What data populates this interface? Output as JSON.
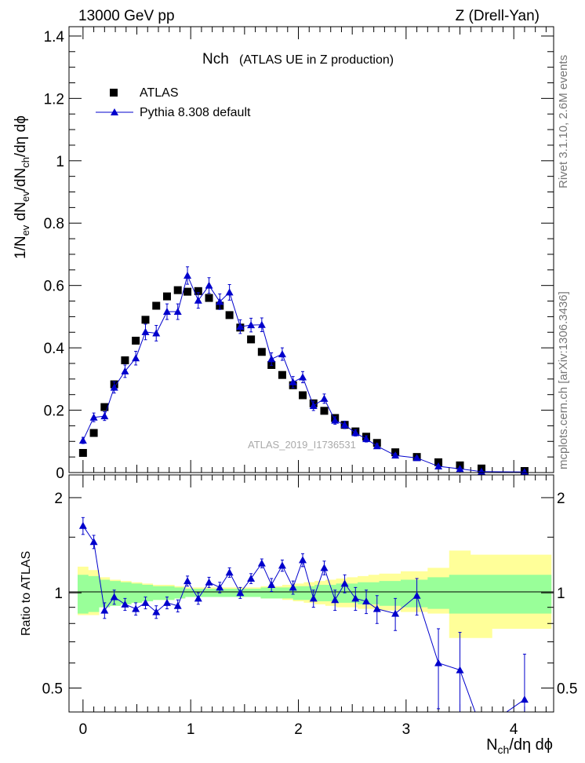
{
  "header": {
    "left": "13000 GeV pp",
    "right": "Z (Drell-Yan)"
  },
  "side_labels": {
    "rivet": "Rivet 3.1.10,  2.6M events",
    "mcplots": "mcplots.cern.ch [arXiv:1306.3436]"
  },
  "plot_title": {
    "main": "Nch",
    "sub": "(ATLAS UE in Z production)"
  },
  "watermark": "ATLAS_2019_I1736531",
  "legend": {
    "data_label": "ATLAS",
    "mc_label": "Pythia 8.308 default"
  },
  "axes": {
    "top_ylabel": "1/N_ev dN_ev/dN_ch/dη dϕ",
    "bottom_ylabel": "Ratio to ATLAS",
    "xlabel": "N_ch/dη dϕ"
  },
  "colors": {
    "data": "#000000",
    "mc": "#0000cc",
    "band_inner": "#99ff99",
    "band_outer": "#ffff99"
  },
  "chart_data": [
    {
      "type": "scatter",
      "panel": "main",
      "xlim": [
        -0.13,
        4.37
      ],
      "ylim": [
        0,
        1.43
      ],
      "yticks": [
        0,
        0.2,
        0.4,
        0.6,
        0.8,
        1,
        1.2,
        1.4
      ],
      "xticks": [
        0,
        1,
        2,
        3,
        4
      ],
      "series": [
        {
          "name": "ATLAS",
          "marker": "square",
          "x": [
            0.0,
            0.1,
            0.2,
            0.29,
            0.39,
            0.49,
            0.58,
            0.68,
            0.78,
            0.88,
            0.97,
            1.07,
            1.17,
            1.27,
            1.36,
            1.46,
            1.56,
            1.66,
            1.75,
            1.85,
            1.95,
            2.04,
            2.14,
            2.24,
            2.34,
            2.43,
            2.53,
            2.63,
            2.73,
            2.9,
            3.1,
            3.3,
            3.5,
            3.7,
            4.1
          ],
          "y": [
            0.063,
            0.127,
            0.21,
            0.283,
            0.36,
            0.423,
            0.49,
            0.535,
            0.565,
            0.585,
            0.58,
            0.582,
            0.56,
            0.535,
            0.505,
            0.465,
            0.427,
            0.387,
            0.345,
            0.313,
            0.28,
            0.248,
            0.222,
            0.198,
            0.175,
            0.153,
            0.132,
            0.115,
            0.095,
            0.065,
            0.05,
            0.033,
            0.023,
            0.013,
            0.005
          ]
        },
        {
          "name": "Pythia 8.308 default",
          "marker": "triangle",
          "x": [
            0.0,
            0.1,
            0.2,
            0.29,
            0.39,
            0.49,
            0.58,
            0.68,
            0.78,
            0.88,
            0.97,
            1.07,
            1.17,
            1.27,
            1.36,
            1.46,
            1.56,
            1.66,
            1.75,
            1.85,
            1.95,
            2.04,
            2.14,
            2.24,
            2.34,
            2.43,
            2.53,
            2.63,
            2.73,
            2.9,
            3.1,
            3.3,
            3.5,
            3.7,
            4.1
          ],
          "y": [
            0.103,
            0.177,
            0.181,
            0.273,
            0.325,
            0.367,
            0.451,
            0.447,
            0.516,
            0.516,
            0.632,
            0.552,
            0.6,
            0.548,
            0.578,
            0.468,
            0.473,
            0.474,
            0.364,
            0.38,
            0.29,
            0.306,
            0.214,
            0.237,
            0.167,
            0.153,
            0.127,
            0.108,
            0.085,
            0.055,
            0.047,
            0.02,
            0.012,
            0.003,
            0.002
          ],
          "yerr": [
            0.01,
            0.014,
            0.014,
            0.018,
            0.02,
            0.022,
            0.025,
            0.025,
            0.025,
            0.025,
            0.028,
            0.025,
            0.025,
            0.025,
            0.025,
            0.022,
            0.022,
            0.022,
            0.02,
            0.02,
            0.018,
            0.018,
            0.015,
            0.015,
            0.012,
            0.012,
            0.01,
            0.01,
            0.008,
            0.006,
            0.005,
            0.004,
            0.003,
            0.002,
            0.002
          ]
        }
      ]
    },
    {
      "type": "line",
      "panel": "ratio",
      "ylabel": "Ratio to ATLAS",
      "xlabel": "N_ch/dη dϕ",
      "log_y": true,
      "ylim": [
        0.42,
        2.36
      ],
      "yticks": [
        0.5,
        1,
        2
      ],
      "xticks": [
        0,
        1,
        2,
        3,
        4
      ],
      "band": {
        "x": [
          -0.05,
          0.05,
          0.15,
          0.25,
          0.35,
          0.45,
          0.55,
          0.65,
          0.75,
          0.85,
          0.95,
          1.05,
          1.15,
          1.25,
          1.35,
          1.45,
          1.55,
          1.65,
          1.75,
          1.85,
          1.95,
          2.05,
          2.15,
          2.25,
          2.35,
          2.45,
          2.55,
          2.65,
          2.75,
          2.95,
          3.2,
          3.4,
          3.6,
          3.8,
          4.35
        ],
        "inner_lo": [
          0.86,
          0.87,
          0.9,
          0.91,
          0.92,
          0.93,
          0.94,
          0.95,
          0.95,
          0.96,
          0.97,
          0.97,
          0.97,
          0.97,
          0.97,
          0.97,
          0.97,
          0.96,
          0.96,
          0.96,
          0.95,
          0.95,
          0.94,
          0.94,
          0.93,
          0.93,
          0.92,
          0.92,
          0.91,
          0.9,
          0.89,
          0.86,
          0.86,
          0.86,
          0.86
        ],
        "inner_hi": [
          1.14,
          1.13,
          1.1,
          1.09,
          1.08,
          1.07,
          1.06,
          1.05,
          1.05,
          1.04,
          1.03,
          1.03,
          1.03,
          1.03,
          1.03,
          1.03,
          1.03,
          1.04,
          1.04,
          1.04,
          1.05,
          1.05,
          1.06,
          1.06,
          1.07,
          1.07,
          1.08,
          1.08,
          1.09,
          1.1,
          1.12,
          1.14,
          1.14,
          1.14,
          1.14
        ],
        "outer_lo": [
          0.85,
          0.85,
          0.9,
          0.91,
          0.92,
          0.93,
          0.94,
          0.95,
          0.95,
          0.96,
          0.97,
          0.97,
          0.97,
          0.97,
          0.97,
          0.97,
          0.97,
          0.96,
          0.96,
          0.95,
          0.94,
          0.93,
          0.92,
          0.91,
          0.9,
          0.9,
          0.89,
          0.89,
          0.88,
          0.87,
          0.86,
          0.72,
          0.72,
          0.77,
          0.77
        ],
        "outer_hi": [
          1.21,
          1.18,
          1.12,
          1.1,
          1.09,
          1.08,
          1.07,
          1.06,
          1.06,
          1.05,
          1.04,
          1.04,
          1.04,
          1.04,
          1.04,
          1.04,
          1.04,
          1.05,
          1.05,
          1.06,
          1.07,
          1.08,
          1.09,
          1.1,
          1.11,
          1.12,
          1.13,
          1.14,
          1.15,
          1.17,
          1.2,
          1.36,
          1.32,
          1.32,
          1.32
        ]
      },
      "series": [
        {
          "name": "Pythia 8.308 default",
          "marker": "triangle",
          "x": [
            0.0,
            0.1,
            0.2,
            0.29,
            0.39,
            0.49,
            0.58,
            0.68,
            0.78,
            0.88,
            0.97,
            1.07,
            1.17,
            1.27,
            1.36,
            1.46,
            1.56,
            1.66,
            1.75,
            1.85,
            1.95,
            2.04,
            2.14,
            2.24,
            2.34,
            2.43,
            2.53,
            2.63,
            2.73,
            2.9,
            3.1,
            3.3,
            3.5,
            3.7,
            4.1
          ],
          "y": [
            1.63,
            1.45,
            0.88,
            0.97,
            0.92,
            0.89,
            0.93,
            0.87,
            0.93,
            0.91,
            1.09,
            0.96,
            1.08,
            1.04,
            1.16,
            1.0,
            1.11,
            1.24,
            1.06,
            1.22,
            1.04,
            1.27,
            0.96,
            1.2,
            0.95,
            1.07,
            0.96,
            0.94,
            0.89,
            0.86,
            0.98,
            0.6,
            0.57,
            0.37,
            0.46
          ],
          "yerr": [
            0.1,
            0.07,
            0.05,
            0.05,
            0.04,
            0.04,
            0.04,
            0.04,
            0.04,
            0.04,
            0.04,
            0.04,
            0.04,
            0.04,
            0.04,
            0.04,
            0.04,
            0.04,
            0.05,
            0.05,
            0.05,
            0.06,
            0.06,
            0.06,
            0.07,
            0.07,
            0.08,
            0.08,
            0.09,
            0.1,
            0.13,
            0.17,
            0.18,
            0.2,
            0.18
          ]
        }
      ]
    }
  ]
}
